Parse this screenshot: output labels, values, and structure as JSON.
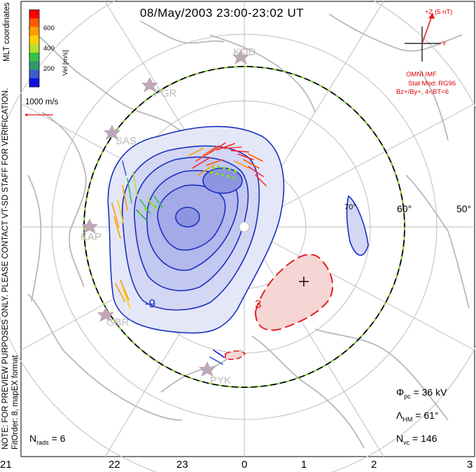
{
  "title": "08/May/2003 23:00-23:02 UT",
  "side_note": "NOTE: FOR PREVIEW PURPOSES ONLY. PLEASE CONTACT VT-SD STAFF FOR VERIFICATION.",
  "side_format": "FitOrder: 8,  mapEX format",
  "side_coords": "MLT coordinates",
  "color_bar": {
    "label": "Vel [m/s]",
    "ticks": [
      "600",
      "400",
      "200"
    ],
    "colors": [
      "#ff0000",
      "#ff5a00",
      "#ff9c00",
      "#ffd000",
      "#b8e02a",
      "#35c24a",
      "#2f9a6a",
      "#3a5fcc",
      "#1010e0"
    ]
  },
  "scale_vector": "1000 m/s",
  "imf": {
    "z_label": "+Z (5 nT)",
    "y_label": "+Y",
    "source": "OMNI IMF",
    "model": "Stat Mod: RG96",
    "condition": "Bz+/By+, 4<BT<6"
  },
  "radars": [
    "KOD",
    "PGR",
    "SAS",
    "KAP",
    "GBR",
    "PYK"
  ],
  "latitude_labels": [
    "60°",
    "50°",
    "70°"
  ],
  "contour_labels": [
    "-9",
    "3"
  ],
  "mlt_labels": [
    "21",
    "22",
    "23",
    "0",
    "1",
    "2",
    "3"
  ],
  "stats": {
    "phi_pc": {
      "symbol": "Φ",
      "sub": "pc",
      "value": " = 36 kV"
    },
    "lambda_hm": {
      "symbol": "Λ",
      "sub": "HM",
      "value": " = 61°"
    },
    "n_vc": {
      "symbol": "N",
      "sub": "vc",
      "value": " = 146"
    },
    "n_rads": {
      "symbol": "N",
      "sub": "rads",
      "value": " = 6"
    }
  },
  "colors": {
    "neg_contour": "#1a2fc0",
    "pos_contour": "#e02020",
    "neg_fill": "#aab0ee",
    "pos_fill": "#f6d5d5",
    "land": "#b8b8b8",
    "grid": "#c8c8c8"
  }
}
